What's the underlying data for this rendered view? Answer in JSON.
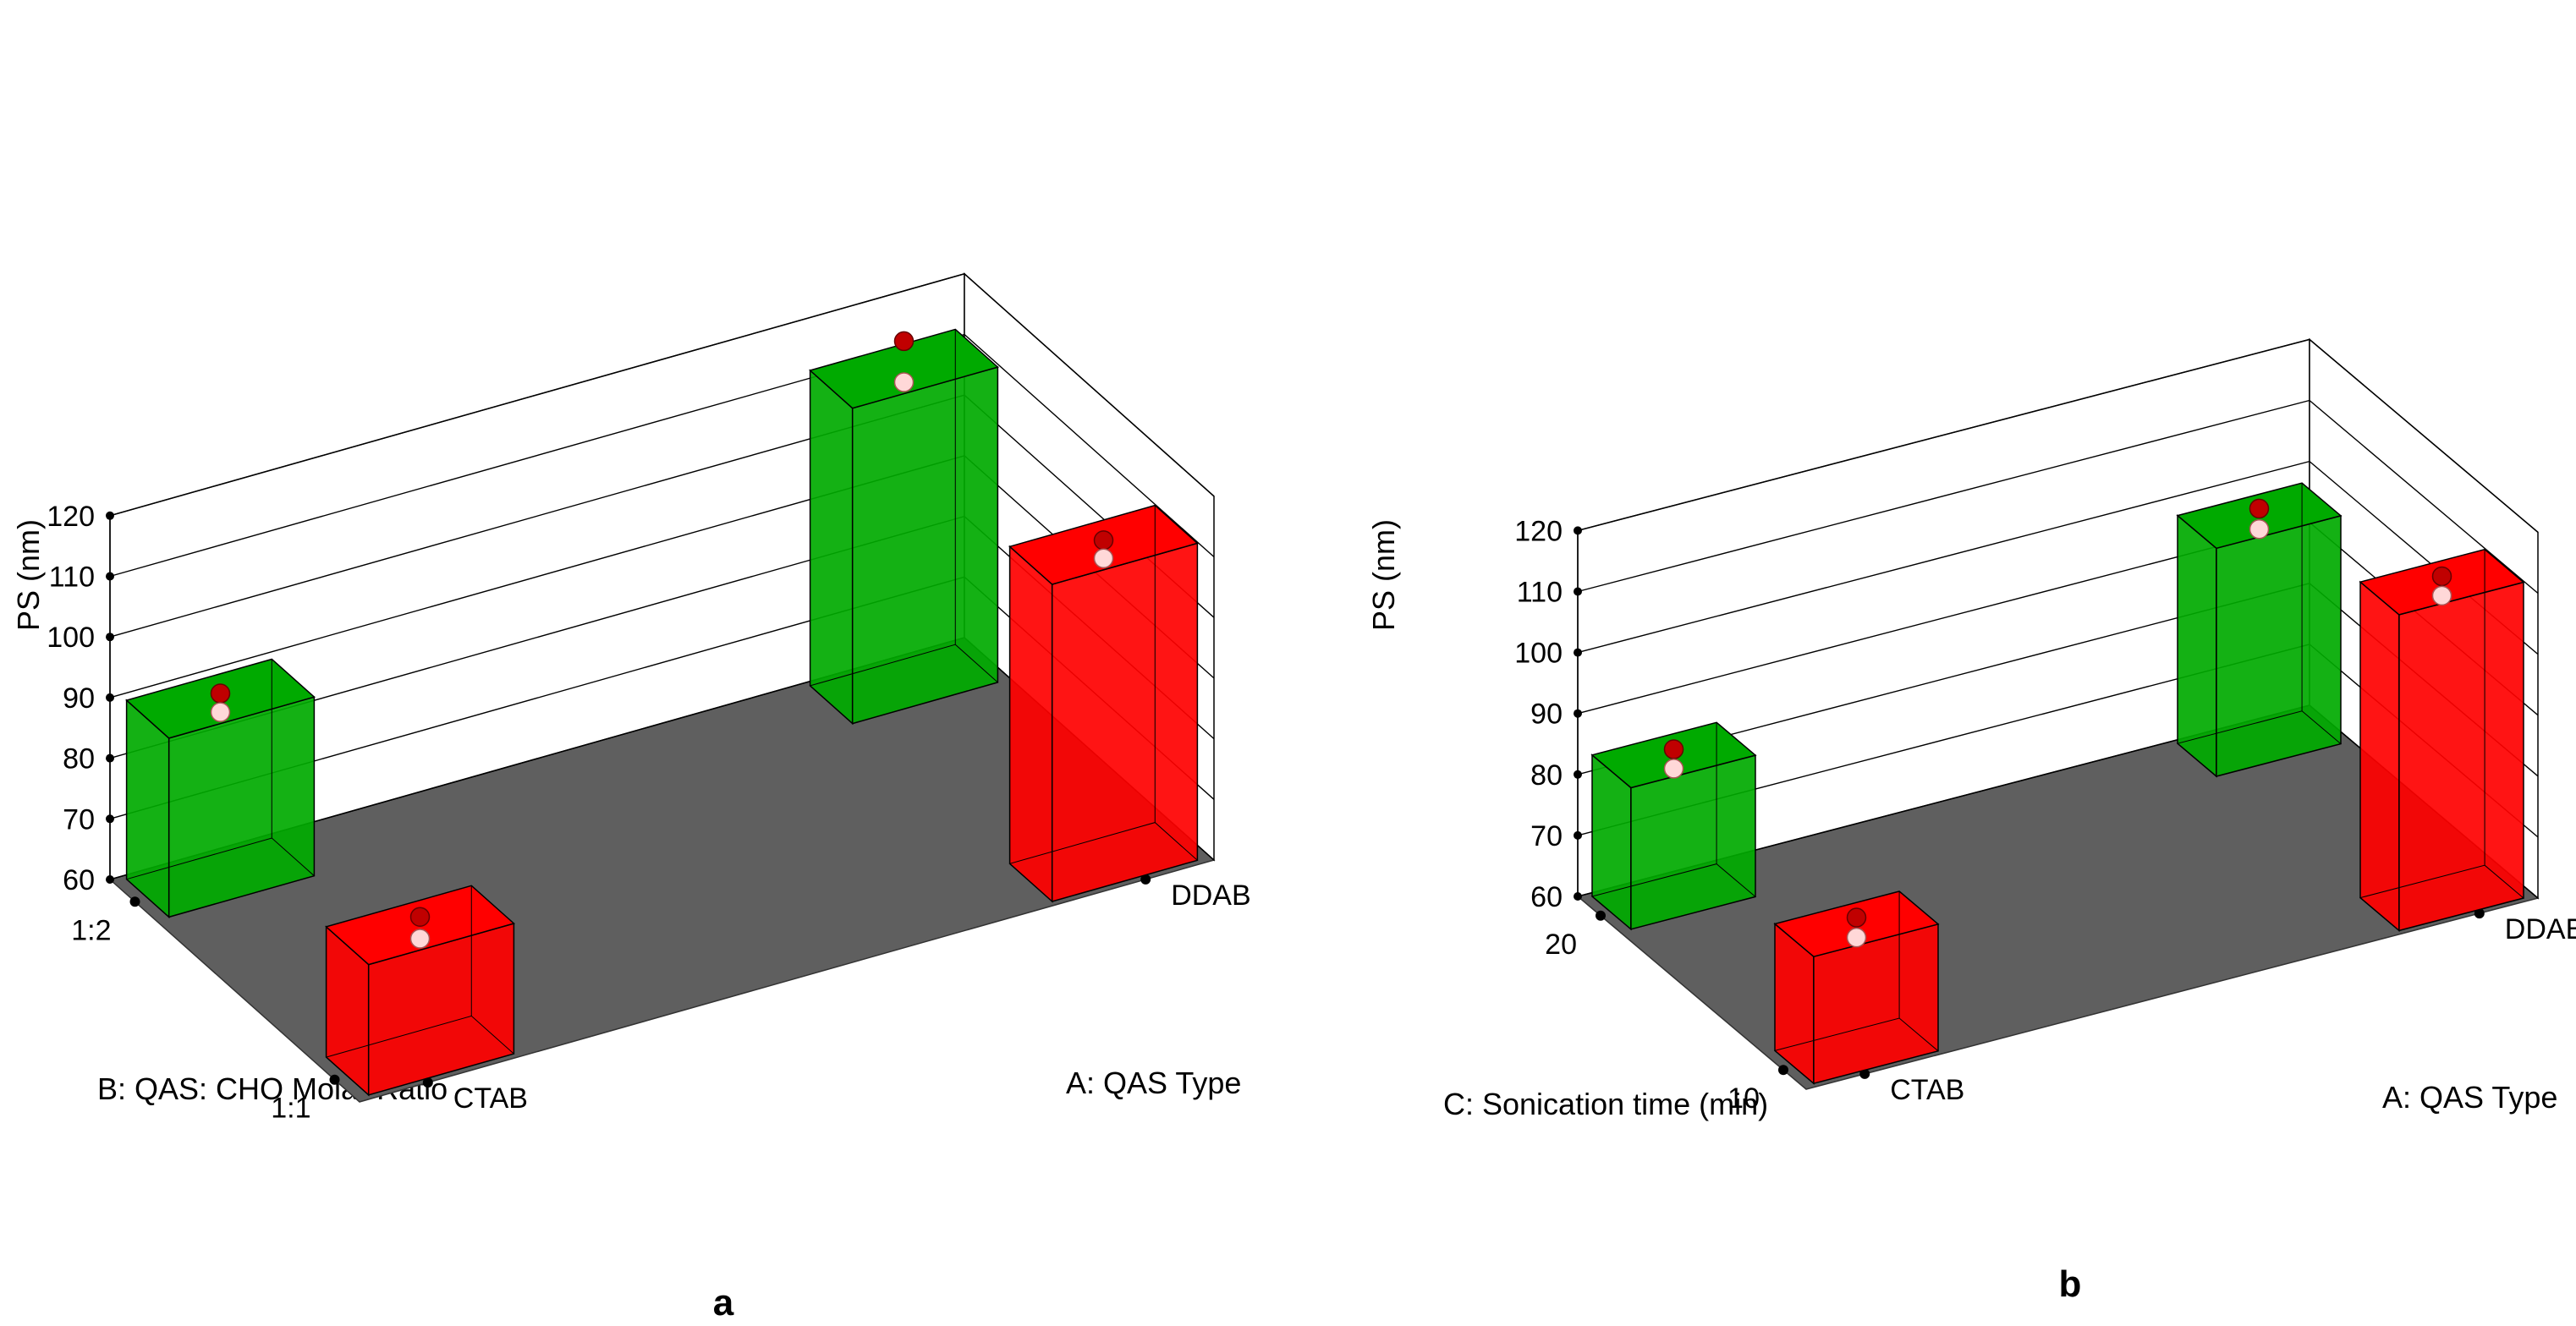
{
  "colors": {
    "low": "#00aa00",
    "low_dark": "#007a00",
    "high": "#ff0000",
    "high_dark": "#c00000",
    "floor": "#5f5f5f",
    "grid": "#000000",
    "actual_point": "#c00000",
    "predicted_point": "#ffd8d8"
  },
  "chart_data": [
    {
      "type": "bar3d",
      "panel_label": "a",
      "ylabel": "PS (nm)",
      "ylim": [
        60,
        120
      ],
      "yticks": [
        "60",
        "70",
        "80",
        "90",
        "100",
        "110",
        "120"
      ],
      "x_factor": {
        "label": "A: QAS Type",
        "levels": [
          "CTAB",
          "DDAB"
        ]
      },
      "z_factor": {
        "label": "B: QAS: CHO Molar Ratio",
        "levels": [
          "1:1",
          "1:2"
        ]
      },
      "bars": [
        {
          "A": "CTAB",
          "B": "1:2",
          "color": "low",
          "value": 89.5,
          "actual": 89.8
        },
        {
          "A": "DDAB",
          "B": "1:2",
          "color": "low",
          "value": 112,
          "actual": 116
        },
        {
          "A": "DDAB",
          "B": "1:1",
          "color": "high",
          "value": 112.3,
          "actual": 112.5
        },
        {
          "A": "CTAB",
          "B": "1:1",
          "color": "high",
          "value": 81.5,
          "actual": 82.3
        }
      ]
    },
    {
      "type": "bar3d",
      "panel_label": "b",
      "ylabel": "PS (nm)",
      "ylim": [
        60,
        120
      ],
      "yticks": [
        "60",
        "70",
        "80",
        "90",
        "100",
        "110",
        "120"
      ],
      "x_factor": {
        "label": "A: QAS Type",
        "levels": [
          "CTAB",
          "DDAB"
        ]
      },
      "z_factor": {
        "label": "C: Sonication time (min)",
        "levels": [
          "10",
          "20"
        ]
      },
      "bars": [
        {
          "A": "CTAB",
          "B": "20",
          "color": "low",
          "value": 83.2,
          "actual": 83.6
        },
        {
          "A": "DDAB",
          "B": "20",
          "color": "low",
          "value": 97.4,
          "actual": 98
        },
        {
          "A": "DDAB",
          "B": "10",
          "color": "high",
          "value": 111.8,
          "actual": 112.2
        },
        {
          "A": "CTAB",
          "B": "10",
          "color": "high",
          "value": 80.8,
          "actual": 81.3
        }
      ]
    }
  ]
}
